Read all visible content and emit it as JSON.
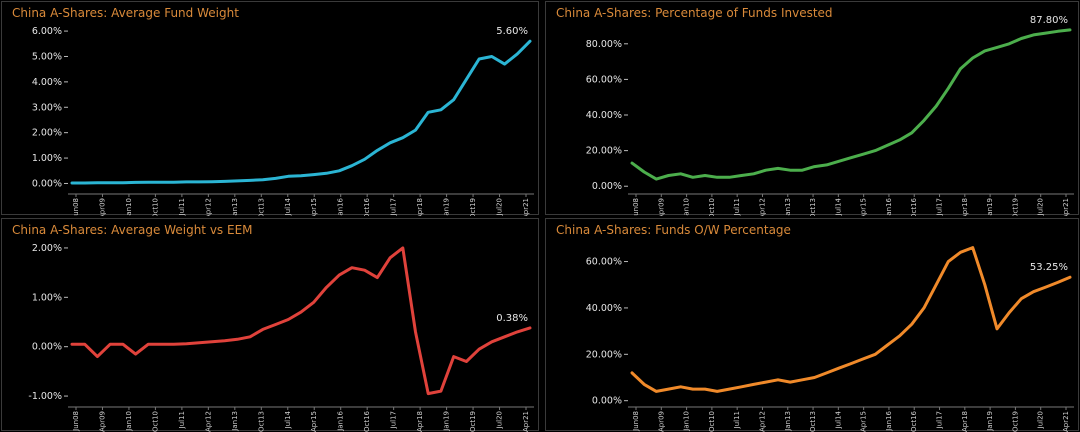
{
  "chart_data": [
    {
      "type": "line",
      "title": "China A-Shares:  Average Fund Weight",
      "color": "#2bb5d4",
      "y_ticks": [
        "0.00%",
        "1.00%",
        "2.00%",
        "3.00%",
        "4.00%",
        "5.00%",
        "6.00%"
      ],
      "y_tick_values": [
        0,
        1,
        2,
        3,
        4,
        5,
        6
      ],
      "ylim": [
        -0.1,
        6.2
      ],
      "x_ticks": [
        "Jun08",
        "Apr09",
        "Jan10",
        "Oct10",
        "Jul11",
        "Apr12",
        "Jan13",
        "Oct13",
        "Jul14",
        "Apr15",
        "Jan16",
        "Oct16",
        "Jul17",
        "Apr18",
        "Jan19",
        "Oct19",
        "Jul20",
        "Apr21"
      ],
      "end_label": "5.60%",
      "series": [
        {
          "values": [
            0.02,
            0.02,
            0.03,
            0.03,
            0.03,
            0.04,
            0.05,
            0.05,
            0.05,
            0.06,
            0.06,
            0.07,
            0.08,
            0.1,
            0.12,
            0.15,
            0.2,
            0.28,
            0.3,
            0.35,
            0.4,
            0.5,
            0.7,
            0.95,
            1.3,
            1.6,
            1.8,
            2.1,
            2.8,
            2.9,
            3.3,
            4.1,
            4.9,
            5.0,
            4.7,
            5.1,
            5.6
          ]
        }
      ]
    },
    {
      "type": "line",
      "title": "China A-Shares:  Percentage of Funds Invested",
      "color": "#4cae4c",
      "y_ticks": [
        "0.00%",
        "20.00%",
        "40.00%",
        "60.00%",
        "80.00%"
      ],
      "y_tick_values": [
        0,
        20,
        40,
        60,
        80
      ],
      "ylim": [
        -1,
        90
      ],
      "x_ticks": [
        "Jun08",
        "Apr09",
        "Jan10",
        "Oct10",
        "Jul11",
        "Apr12",
        "Jan13",
        "Oct13",
        "Jul14",
        "Apr15",
        "Jan16",
        "Oct16",
        "Jul17",
        "Apr18",
        "Jan19",
        "Oct19",
        "Jul20",
        "Apr21"
      ],
      "end_label": "87.80%",
      "series": [
        {
          "values": [
            13,
            8,
            4,
            6,
            7,
            5,
            6,
            5,
            5,
            6,
            7,
            9,
            10,
            9,
            9,
            11,
            12,
            14,
            16,
            18,
            20,
            23,
            26,
            30,
            37,
            45,
            55,
            66,
            72,
            76,
            78,
            80,
            83,
            85,
            86,
            87,
            87.8
          ]
        }
      ]
    },
    {
      "type": "line",
      "title": "China A-Shares:  Average Weight vs EEM",
      "color": "#e0423b",
      "y_ticks": [
        "-1.00%",
        "0.00%",
        "1.00%",
        "2.00%"
      ],
      "y_tick_values": [
        -1,
        0,
        1,
        2
      ],
      "ylim": [
        -1.1,
        2.1
      ],
      "x_ticks": [
        "Jun08",
        "Apr09",
        "Jan10",
        "Oct10",
        "Jul11",
        "Apr12",
        "Jan13",
        "Oct13",
        "Jul14",
        "Apr15",
        "Jan16",
        "Oct16",
        "Jul17",
        "Apr18",
        "Jan19",
        "Oct19",
        "Jul20",
        "Apr21"
      ],
      "end_label": "0.38%",
      "series": [
        {
          "values": [
            0.05,
            0.05,
            -0.2,
            0.05,
            0.05,
            -0.15,
            0.05,
            0.05,
            0.05,
            0.06,
            0.08,
            0.1,
            0.12,
            0.15,
            0.2,
            0.35,
            0.45,
            0.55,
            0.7,
            0.9,
            1.2,
            1.45,
            1.6,
            1.55,
            1.4,
            1.8,
            2.0,
            0.3,
            -0.95,
            -0.9,
            -0.2,
            -0.3,
            -0.05,
            0.1,
            0.2,
            0.3,
            0.38
          ]
        }
      ]
    },
    {
      "type": "line",
      "title": "China A-Shares: Funds O/W Percentage",
      "color": "#f08a2a",
      "y_ticks": [
        "0.00%",
        "20.00%",
        "40.00%",
        "60.00%"
      ],
      "y_tick_values": [
        0,
        20,
        40,
        60
      ],
      "ylim": [
        -1,
        68
      ],
      "x_ticks": [
        "Jun08",
        "Apr09",
        "Jan10",
        "Oct10",
        "Jul11",
        "Apr12",
        "Jan13",
        "Oct13",
        "Jul14",
        "Apr15",
        "Jan16",
        "Oct16",
        "Jul17",
        "Apr18",
        "Jan19",
        "Oct19",
        "Jul20",
        "Apr21"
      ],
      "end_label": "53.25%",
      "series": [
        {
          "values": [
            12,
            7,
            4,
            5,
            6,
            5,
            5,
            4,
            5,
            6,
            7,
            8,
            9,
            8,
            9,
            10,
            12,
            14,
            16,
            18,
            20,
            24,
            28,
            33,
            40,
            50,
            60,
            64,
            66,
            50,
            31,
            38,
            44,
            47,
            49,
            51,
            53.25
          ]
        }
      ]
    }
  ]
}
